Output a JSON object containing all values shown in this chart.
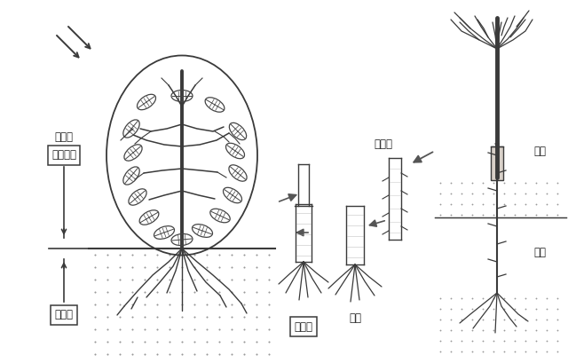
{
  "bg_color": "#ffffff",
  "line_color": "#3a3a3a",
  "soil_dot_color": "#999999",
  "text_color": "#222222",
  "labels": {
    "hikousei": "光合成",
    "douka": "同化物質",
    "yousuibun": "養水分",
    "tsugiki": "接ぎ木",
    "tsugibo": "接ぎ穂",
    "daimoku": "台木",
    "bojyu": "母樹",
    "daimoku2": "台木"
  },
  "figsize": [
    6.4,
    4.09
  ],
  "dpi": 100
}
